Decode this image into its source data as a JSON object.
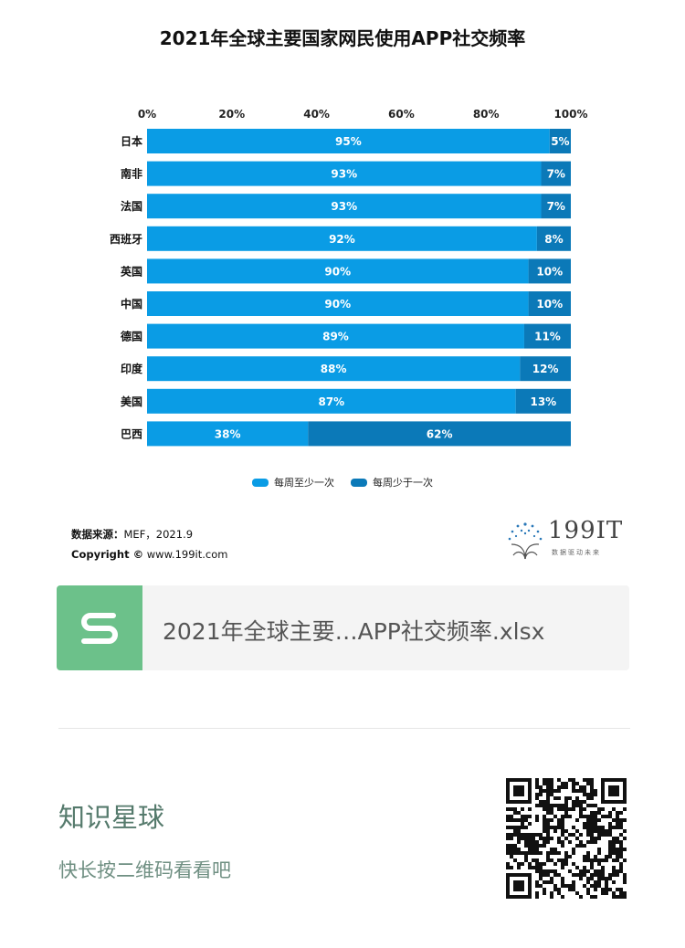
{
  "title": "2021年全球主要国家网民使用APP社交频率",
  "chart_data": {
    "type": "bar",
    "stacked": true,
    "orientation": "horizontal",
    "categories": [
      "日本",
      "南非",
      "法国",
      "西班牙",
      "英国",
      "中国",
      "德国",
      "印度",
      "美国",
      "巴西"
    ],
    "series": [
      {
        "name": "每周至少一次",
        "values": [
          95,
          93,
          93,
          92,
          90,
          90,
          89,
          88,
          87,
          38
        ],
        "color": "#0a9ce5"
      },
      {
        "name": "每周少于一次",
        "values": [
          5,
          7,
          7,
          8,
          10,
          10,
          11,
          12,
          13,
          62
        ],
        "color": "#0b79b8"
      }
    ],
    "value_labels": {
      "series0": [
        "95%",
        "93%",
        "93%",
        "92%",
        "90%",
        "90%",
        "89%",
        "88%",
        "87%",
        "38%"
      ],
      "series1": [
        "5%",
        "7%",
        "7%",
        "8%",
        "10%",
        "10%",
        "11%",
        "12%",
        "13%",
        "62%"
      ]
    },
    "xticks": [
      "0%",
      "20%",
      "40%",
      "60%",
      "80%",
      "100%"
    ],
    "xlim": [
      0,
      100
    ],
    "axis_position": "top",
    "legend_position": "bottom-center",
    "grid": false
  },
  "source": {
    "label": "数据来源：",
    "value": "MEF，2021.9",
    "copyright_label": "Copyright ©",
    "copyright_value": "www.199it.com"
  },
  "brand": {
    "name": "199IT",
    "tagline": "数据驱动未来"
  },
  "file_card": {
    "name": "2021年全球主要…APP社交频率.xlsx",
    "icon": "spreadsheet-s-icon"
  },
  "knowledge": {
    "title": "知识星球",
    "subtitle": "快长按二维码看看吧"
  },
  "qr_icon": "qr-code-icon"
}
